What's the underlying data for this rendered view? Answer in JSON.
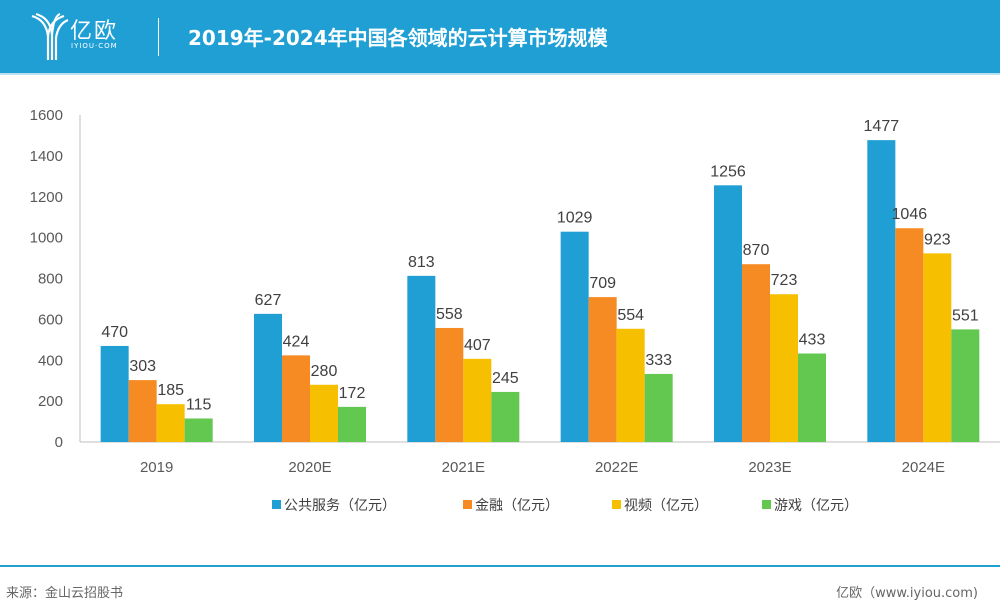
{
  "header": {
    "logo_text": "亿欧",
    "logo_sub": "IYIOU·COM",
    "title": "2019年-2024年中国各领域的云计算市场规模"
  },
  "footer": {
    "source": "来源：金山云招股书",
    "credit": "亿欧（www.iyiou.com)"
  },
  "chart_data": {
    "type": "bar",
    "title": "2019年-2024年中国各领域的云计算市场规模",
    "xlabel": "",
    "ylabel": "",
    "categories": [
      "2019",
      "2020E",
      "2021E",
      "2022E",
      "2023E",
      "2024E"
    ],
    "yticks": [
      0,
      200,
      400,
      600,
      800,
      1000,
      1200,
      1400,
      1600
    ],
    "ylim": [
      0,
      1600
    ],
    "grid": false,
    "legend_position": "bottom",
    "series": [
      {
        "name": "公共服务（亿元）",
        "color": "#1f9fd4",
        "values": [
          470,
          627,
          813,
          1029,
          1256,
          1477
        ]
      },
      {
        "name": "金融（亿元）",
        "color": "#f68b24",
        "values": [
          303,
          424,
          558,
          709,
          870,
          1046
        ]
      },
      {
        "name": "视频（亿元）",
        "color": "#f6bf00",
        "values": [
          185,
          280,
          407,
          554,
          723,
          923
        ]
      },
      {
        "name": "游戏（亿元）",
        "color": "#62c84f",
        "values": [
          115,
          172,
          245,
          333,
          433,
          551
        ]
      }
    ]
  }
}
